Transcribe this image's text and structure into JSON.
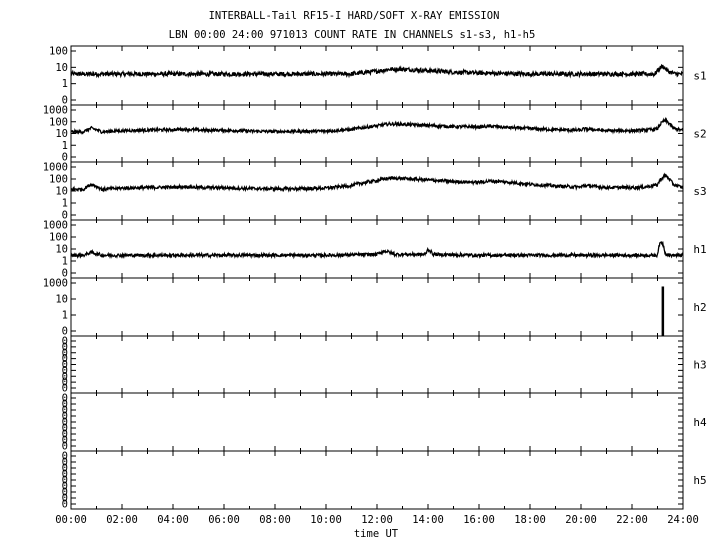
{
  "title_line1": "INTERBALL-Tail RF15-I HARD/SOFT X-RAY EMISSION",
  "title_line2": "LBN 00:00 24:00 971013  COUNT RATE IN CHANNELS s1-s3, h1-h5",
  "chart_data": {
    "type": "line",
    "title": "INTERBALL-Tail RF15-I HARD/SOFT X-RAY EMISSION",
    "subtitle": "LBN 00:00 24:00 971013  COUNT RATE IN CHANNELS s1-s3, h1-h5",
    "xlabel": "time UT",
    "x_ticks": [
      "00:00",
      "02:00",
      "04:00",
      "06:00",
      "08:00",
      "10:00",
      "12:00",
      "14:00",
      "16:00",
      "18:00",
      "20:00",
      "22:00",
      "24:00"
    ],
    "xlim_hours": [
      0,
      24
    ],
    "y_scale": "log",
    "grid": false,
    "panels": [
      {
        "name": "s1",
        "y_ticks": [
          "100",
          "10",
          "1",
          "0"
        ],
        "ylim": [
          0.3,
          150
        ],
        "series": [
          {
            "t": [
              0,
              2,
              4,
              6,
              8,
              10,
              11,
              12,
              12.5,
              13,
              14,
              15,
              16,
              18,
              20,
              22,
              22.9,
              23.2,
              23.4,
              23.7,
              24
            ],
            "values": [
              8,
              8,
              8,
              8,
              8,
              8,
              8,
              11,
              14,
              14,
              12,
              10,
              9,
              8,
              8,
              8,
              8,
              20,
              11,
              8,
              8
            ]
          }
        ]
      },
      {
        "name": "s2",
        "y_ticks": [
          "1000",
          "100",
          "10",
          "1",
          "0"
        ],
        "ylim": [
          0.3,
          1200
        ],
        "series": [
          {
            "t": [
              0,
              0.5,
              0.8,
              1.2,
              2,
              3,
              4,
              4.5,
              5,
              6,
              7,
              8,
              9,
              10,
              11,
              12,
              12.5,
              13,
              14,
              15,
              16,
              16.5,
              17,
              18,
              19,
              20,
              20.1,
              21,
              22,
              22.5,
              23,
              23.3,
              23.6,
              24
            ],
            "values": [
              25,
              25,
              45,
              25,
              30,
              33,
              35,
              38,
              33,
              32,
              28,
              26,
              27,
              28,
              36,
              65,
              90,
              85,
              70,
              58,
              55,
              62,
              52,
              42,
              35,
              32,
              40,
              30,
              30,
              32,
              40,
              160,
              45,
              30
            ]
          }
        ]
      },
      {
        "name": "s3",
        "y_ticks": [
          "1000",
          "100",
          "10",
          "1",
          "0"
        ],
        "ylim": [
          0.3,
          1200
        ],
        "series": [
          {
            "t": [
              0,
              0.5,
              0.8,
              1.2,
              2,
              3,
              4,
              4.5,
              5,
              6,
              7,
              8,
              9,
              10,
              11,
              12,
              12.5,
              13,
              14,
              15,
              16,
              16.5,
              17,
              18,
              19,
              20,
              20.1,
              21,
              22,
              22.5,
              23,
              23.3,
              23.6,
              24
            ],
            "values": [
              25,
              25,
              55,
              25,
              30,
              33,
              35,
              38,
              33,
              32,
              28,
              27,
              27,
              30,
              45,
              100,
              150,
              140,
              110,
              85,
              75,
              95,
              80,
              55,
              42,
              35,
              45,
              33,
              33,
              36,
              50,
              220,
              55,
              30
            ]
          }
        ]
      },
      {
        "name": "h1",
        "y_ticks": [
          "1000",
          "100",
          "10",
          "1",
          "0"
        ],
        "ylim": [
          0.3,
          1200
        ],
        "series": [
          {
            "t": [
              0,
              0.5,
              0.8,
              1.2,
              2,
              4,
              6,
              8,
              10,
              12,
              12.3,
              12.7,
              13,
              13.9,
              14.0,
              14.2,
              16,
              18,
              20,
              22,
              23,
              23.15,
              23.3,
              23.5,
              24
            ],
            "values": [
              7,
              7,
              11,
              7,
              7,
              7,
              7,
              7,
              7,
              8,
              14,
              8,
              8,
              8,
              18,
              8,
              7,
              7,
              7,
              7,
              7,
              60,
              9,
              7,
              7
            ]
          }
        ]
      },
      {
        "name": "h2",
        "y_ticks": [
          "1000",
          "10",
          "1",
          "0"
        ],
        "ylim": [
          0.3,
          1200
        ],
        "series": [
          {
            "t": [
              23.2,
              23.22
            ],
            "values": [
              500,
              500
            ]
          }
        ]
      },
      {
        "name": "h3",
        "y_ticks": [
          "0",
          "0",
          "0",
          "0",
          "0",
          "0",
          "0",
          "0",
          "0"
        ],
        "ylim": [
          0,
          1
        ],
        "series": []
      },
      {
        "name": "h4",
        "y_ticks": [
          "0",
          "0",
          "0",
          "0",
          "0",
          "0",
          "0",
          "0",
          "0"
        ],
        "ylim": [
          0,
          1
        ],
        "series": []
      },
      {
        "name": "h5",
        "y_ticks": [
          "0",
          "0",
          "0",
          "0",
          "0",
          "0",
          "0",
          "0",
          "0"
        ],
        "ylim": [
          0,
          1
        ],
        "series": []
      }
    ]
  }
}
